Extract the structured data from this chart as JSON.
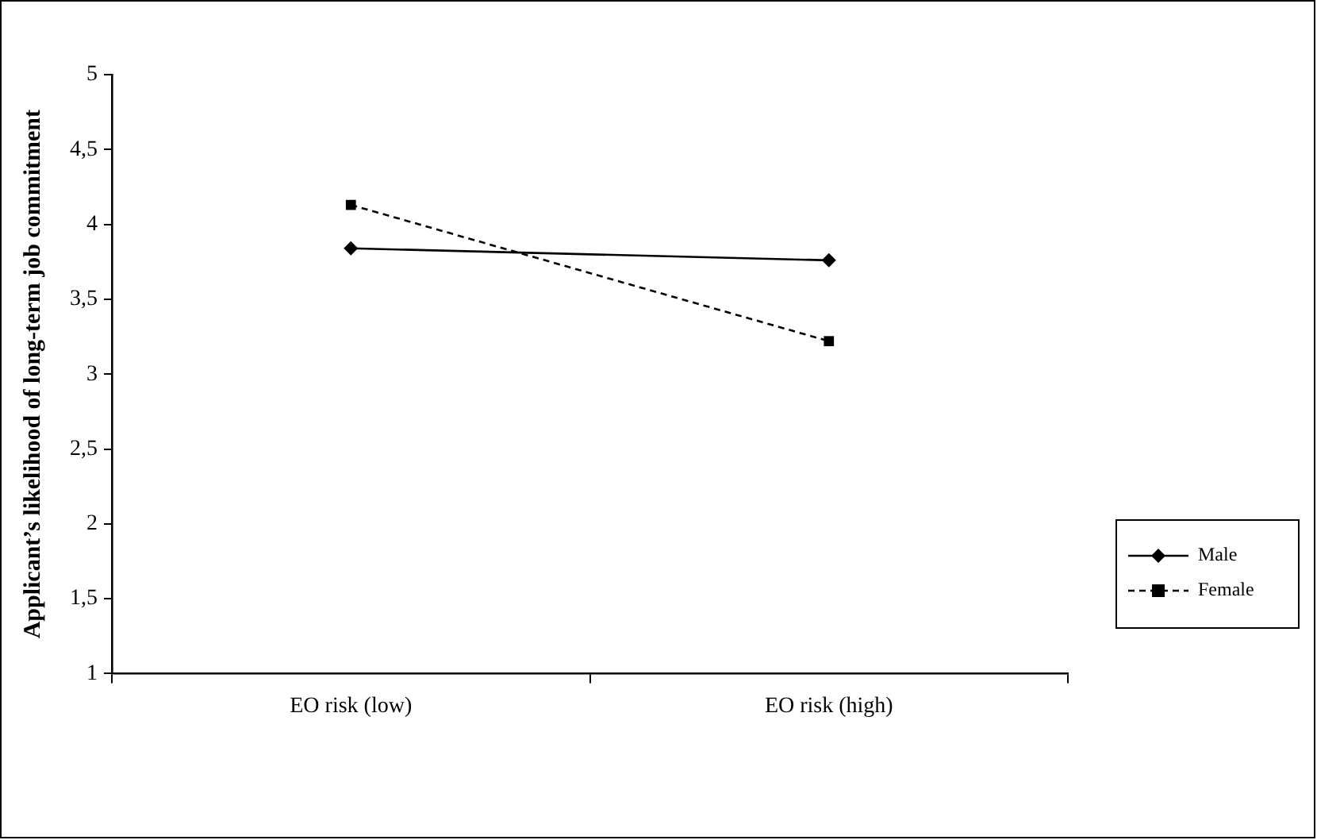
{
  "chart_data": {
    "type": "line",
    "ylabel": "Applicant’s likelihood of long-term job commitment",
    "categories": [
      "EO risk (low)",
      "EO risk (high)"
    ],
    "series": [
      {
        "name": "Male",
        "color": "#000000",
        "values": [
          3.84,
          3.76
        ],
        "marker": "diamond",
        "line_style": "solid"
      },
      {
        "name": "Female",
        "color": "#000000",
        "values": [
          4.13,
          3.22
        ],
        "marker": "square",
        "line_style": "dashed"
      }
    ],
    "ylim": [
      1,
      5
    ],
    "yticks": [
      1,
      {
        "value": 1.5,
        "label": "1,5"
      },
      2,
      {
        "value": 2.5,
        "label": "2,5"
      },
      3,
      {
        "value": 3.5,
        "label": "3,5"
      },
      4,
      {
        "value": 4.5,
        "label": "4,5"
      },
      5
    ],
    "grid": false,
    "legend": "right"
  }
}
